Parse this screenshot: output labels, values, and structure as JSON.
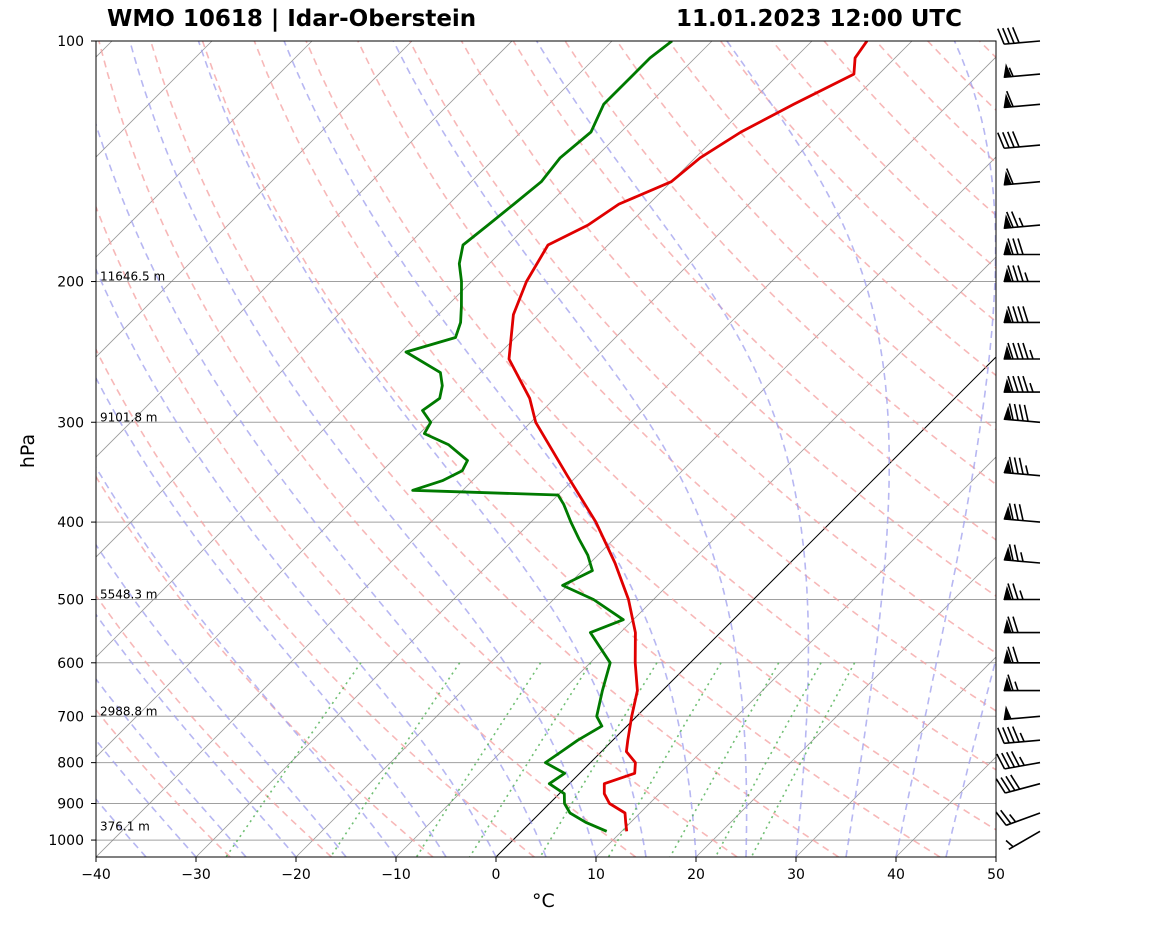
{
  "titles": {
    "left": "WMO 10618 | Idar-Oberstein",
    "right": "11.01.2023 12:00 UTC"
  },
  "colors": {
    "temperature": "#e00000",
    "dewpoint": "#007a00",
    "dry_adiabat": "#f4a0a0",
    "moist_adiabat": "#9f9fee",
    "mixing_ratio": "#4caf50",
    "isotherm": "#808080",
    "isobar": "#a0a0a0"
  },
  "chart_data": {
    "type": "line",
    "subtype": "skew-T log-p sounding",
    "title": "WMO 10618 | Idar-Oberstein",
    "subtitle": "11.01.2023 12:00 UTC",
    "xlabel": "°C",
    "ylabel": "hPa",
    "xlim": [
      -40,
      50
    ],
    "ylim": [
      1000,
      100
    ],
    "y_scale": "log",
    "x_ticks": [
      "−40",
      "−30",
      "−20",
      "−10",
      "0",
      "10",
      "20",
      "30",
      "40",
      "50"
    ],
    "y_ticks": [
      "100",
      "200",
      "300",
      "400",
      "500",
      "600",
      "700",
      "800",
      "900",
      "1000"
    ],
    "grid": true,
    "height_labels": [
      {
        "p": 200,
        "text": "11646.5 m"
      },
      {
        "p": 300,
        "text": "9101.8 m"
      },
      {
        "p": 500,
        "text": "5548.3 m"
      },
      {
        "p": 700,
        "text": "2988.8 m"
      },
      {
        "p": 975,
        "text": "376.1 m"
      }
    ],
    "series": [
      {
        "key": "temperature",
        "points": [
          [
            975,
            10.5
          ],
          [
            950,
            9.5
          ],
          [
            925,
            8.5
          ],
          [
            900,
            6.0
          ],
          [
            875,
            4.5
          ],
          [
            850,
            3.5
          ],
          [
            825,
            5.5
          ],
          [
            800,
            4.5
          ],
          [
            775,
            2.5
          ],
          [
            750,
            1.5
          ],
          [
            700,
            -0.5
          ],
          [
            650,
            -2.5
          ],
          [
            600,
            -5.5
          ],
          [
            550,
            -8.5
          ],
          [
            500,
            -12.5
          ],
          [
            450,
            -17.5
          ],
          [
            400,
            -23.5
          ],
          [
            350,
            -31.0
          ],
          [
            300,
            -39.5
          ],
          [
            280,
            -42.5
          ],
          [
            250,
            -48.5
          ],
          [
            220,
            -52.5
          ],
          [
            200,
            -54.5
          ],
          [
            180,
            -56.0
          ],
          [
            170,
            -54.0
          ],
          [
            160,
            -53.0
          ],
          [
            150,
            -50.0
          ],
          [
            140,
            -49.5
          ],
          [
            130,
            -48.0
          ],
          [
            120,
            -45.5
          ],
          [
            110,
            -42.5
          ],
          [
            105,
            -44.0
          ],
          [
            100,
            -44.5
          ]
        ]
      },
      {
        "key": "dewpoint",
        "points": [
          [
            975,
            8.5
          ],
          [
            950,
            5.5
          ],
          [
            925,
            3.0
          ],
          [
            900,
            1.5
          ],
          [
            875,
            0.5
          ],
          [
            850,
            -2.0
          ],
          [
            825,
            -1.5
          ],
          [
            800,
            -4.5
          ],
          [
            775,
            -4.0
          ],
          [
            750,
            -3.5
          ],
          [
            720,
            -2.5
          ],
          [
            700,
            -4.0
          ],
          [
            650,
            -6.0
          ],
          [
            600,
            -8.0
          ],
          [
            550,
            -13.0
          ],
          [
            530,
            -11.0
          ],
          [
            500,
            -16.0
          ],
          [
            480,
            -20.5
          ],
          [
            460,
            -19.0
          ],
          [
            440,
            -21.0
          ],
          [
            420,
            -23.5
          ],
          [
            400,
            -26.0
          ],
          [
            380,
            -28.5
          ],
          [
            370,
            -30.0
          ],
          [
            365,
            -45.0
          ],
          [
            355,
            -43.0
          ],
          [
            345,
            -42.0
          ],
          [
            335,
            -42.5
          ],
          [
            320,
            -46.0
          ],
          [
            310,
            -49.5
          ],
          [
            300,
            -50.0
          ],
          [
            290,
            -52.0
          ],
          [
            280,
            -51.5
          ],
          [
            270,
            -52.5
          ],
          [
            260,
            -54.0
          ],
          [
            245,
            -59.5
          ],
          [
            235,
            -56.0
          ],
          [
            225,
            -57.0
          ],
          [
            215,
            -58.5
          ],
          [
            200,
            -61.0
          ],
          [
            190,
            -63.0
          ],
          [
            180,
            -64.5
          ],
          [
            170,
            -64.0
          ],
          [
            160,
            -63.5
          ],
          [
            150,
            -63.0
          ],
          [
            140,
            -63.5
          ],
          [
            130,
            -63.0
          ],
          [
            120,
            -64.5
          ],
          [
            110,
            -64.5
          ],
          [
            105,
            -64.5
          ],
          [
            100,
            -64.0
          ]
        ]
      }
    ],
    "wind_barbs": [
      {
        "p": 975,
        "dir": 240,
        "kt": 5
      },
      {
        "p": 925,
        "dir": 250,
        "kt": 25
      },
      {
        "p": 850,
        "dir": 255,
        "kt": 40
      },
      {
        "p": 800,
        "dir": 260,
        "kt": 45
      },
      {
        "p": 750,
        "dir": 265,
        "kt": 45
      },
      {
        "p": 700,
        "dir": 265,
        "kt": 50
      },
      {
        "p": 650,
        "dir": 270,
        "kt": 65
      },
      {
        "p": 600,
        "dir": 270,
        "kt": 70
      },
      {
        "p": 550,
        "dir": 270,
        "kt": 70
      },
      {
        "p": 500,
        "dir": 270,
        "kt": 75
      },
      {
        "p": 450,
        "dir": 275,
        "kt": 75
      },
      {
        "p": 400,
        "dir": 275,
        "kt": 80
      },
      {
        "p": 350,
        "dir": 275,
        "kt": 85
      },
      {
        "p": 300,
        "dir": 275,
        "kt": 90
      },
      {
        "p": 275,
        "dir": 270,
        "kt": 95
      },
      {
        "p": 250,
        "dir": 270,
        "kt": 95
      },
      {
        "p": 225,
        "dir": 270,
        "kt": 90
      },
      {
        "p": 200,
        "dir": 270,
        "kt": 85
      },
      {
        "p": 185,
        "dir": 270,
        "kt": 80
      },
      {
        "p": 170,
        "dir": 265,
        "kt": 75
      },
      {
        "p": 150,
        "dir": 265,
        "kt": 60
      },
      {
        "p": 135,
        "dir": 265,
        "kt": 40
      },
      {
        "p": 120,
        "dir": 265,
        "kt": 60
      },
      {
        "p": 110,
        "dir": 265,
        "kt": 55
      },
      {
        "p": 100,
        "dir": 265,
        "kt": 40
      }
    ]
  }
}
